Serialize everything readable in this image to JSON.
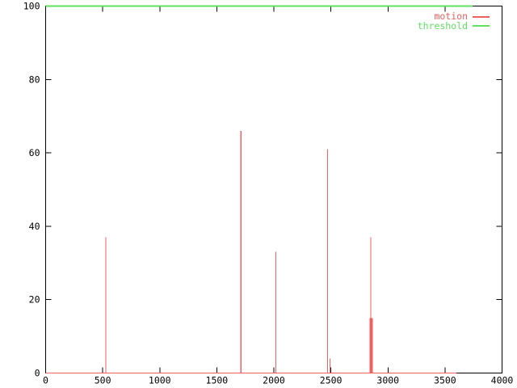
{
  "chart_data": {
    "type": "line",
    "title": "",
    "xlabel": "",
    "ylabel": "",
    "xlim": [
      0,
      4000
    ],
    "ylim": [
      0,
      100
    ],
    "xticks": [
      0,
      500,
      1000,
      1500,
      2000,
      2500,
      3000,
      3500,
      4000
    ],
    "yticks": [
      0,
      20,
      40,
      60,
      80,
      100
    ],
    "grid": false,
    "legend_position": "top-right-inside",
    "background": "#ffffff",
    "axis_color": "#000000",
    "series": [
      {
        "name": "motion",
        "color": "#f25f5f",
        "style": "zero-baseline-with-spikes",
        "x_range": [
          0,
          3600
        ],
        "baseline_value": 0,
        "spikes": [
          {
            "x": 527,
            "v": 37
          },
          {
            "x": 1711,
            "v": 66
          },
          {
            "x": 2017,
            "v": 33
          },
          {
            "x": 2470,
            "v": 61
          },
          {
            "x": 2491,
            "v": 4
          },
          {
            "x": 2843,
            "v": 15
          },
          {
            "x": 2850,
            "v": 37
          },
          {
            "x": 2857,
            "v": 15
          },
          {
            "x": 2864,
            "v": 15
          }
        ]
      },
      {
        "name": "threshold",
        "color": "#5fe05f",
        "style": "constant-hline",
        "x_range": [
          0,
          3740
        ],
        "value": 100
      }
    ]
  },
  "legend": {
    "items": [
      {
        "label": "motion",
        "color": "#f25f5f"
      },
      {
        "label": "threshold",
        "color": "#5fe05f"
      }
    ]
  }
}
